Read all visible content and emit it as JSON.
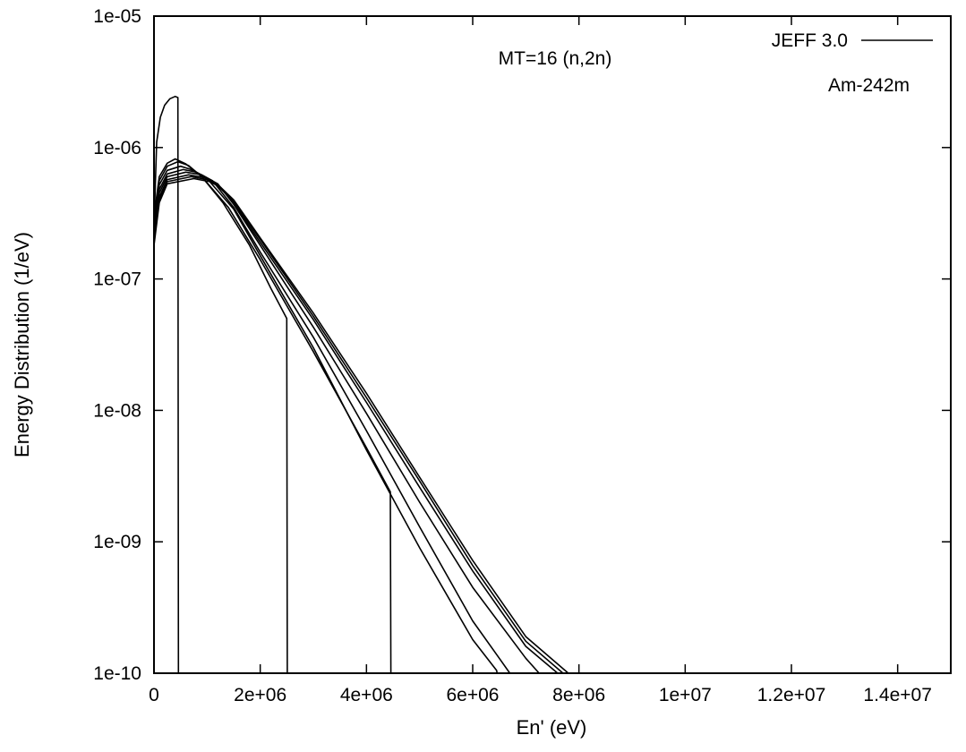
{
  "chart_data": {
    "type": "line",
    "title": "",
    "xlabel": "En' (eV)",
    "ylabel": "Energy Distribution (1/eV)",
    "xlim": [
      0,
      15000000
    ],
    "ylim": [
      1e-10,
      1e-05
    ],
    "yscale": "log",
    "grid": false,
    "legend": {
      "position": "top-right",
      "entries": [
        {
          "label": "JEFF 3.0",
          "color": "#000000"
        }
      ]
    },
    "annotations": [
      {
        "text": "MT=16 (n,2n)"
      },
      {
        "text": "Am-242m"
      }
    ],
    "x_ticks": [
      {
        "value": 0,
        "label": "0"
      },
      {
        "value": 2000000,
        "label": "2e+06"
      },
      {
        "value": 4000000,
        "label": "4e+06"
      },
      {
        "value": 6000000,
        "label": "6e+06"
      },
      {
        "value": 8000000,
        "label": "8e+06"
      },
      {
        "value": 10000000,
        "label": "1e+07"
      },
      {
        "value": 12000000,
        "label": "1.2e+07"
      },
      {
        "value": 14000000,
        "label": "1.4e+07"
      }
    ],
    "y_ticks": [
      {
        "value": 1e-10,
        "label": "1e-10"
      },
      {
        "value": 1e-09,
        "label": "1e-09"
      },
      {
        "value": 1e-08,
        "label": "1e-08"
      },
      {
        "value": 1e-07,
        "label": "1e-07"
      },
      {
        "value": 1e-06,
        "label": "1e-06"
      },
      {
        "value": 1e-05,
        "label": "1e-05"
      }
    ],
    "series": [
      {
        "points": [
          [
            0,
            2.5e-07
          ],
          [
            50000,
            1.1e-06
          ],
          [
            120000,
            1.7e-06
          ],
          [
            200000,
            2.1e-06
          ],
          [
            300000,
            2.35e-06
          ],
          [
            400000,
            2.45e-06
          ],
          [
            450000,
            2.4e-06
          ],
          [
            460000,
            1e-10
          ]
        ]
      },
      {
        "points": [
          [
            0,
            3e-07
          ],
          [
            100000,
            6e-07
          ],
          [
            250000,
            7.6e-07
          ],
          [
            400000,
            8.2e-07
          ],
          [
            600000,
            7.5e-07
          ],
          [
            900000,
            6e-07
          ],
          [
            1300000,
            3.8e-07
          ],
          [
            1800000,
            1.8e-07
          ],
          [
            2200000,
            8.5e-08
          ],
          [
            2500000,
            5e-08
          ],
          [
            2510000,
            1e-10
          ]
        ]
      },
      {
        "points": [
          [
            0,
            2.8e-07
          ],
          [
            100000,
            5.6e-07
          ],
          [
            250000,
            7.2e-07
          ],
          [
            450000,
            7.8e-07
          ],
          [
            650000,
            7.3e-07
          ],
          [
            900000,
            6e-07
          ],
          [
            1400000,
            3.5e-07
          ],
          [
            2000000,
            1.4e-07
          ],
          [
            3000000,
            2.8e-08
          ],
          [
            4000000,
            5.2e-09
          ],
          [
            4450000,
            2.4e-09
          ],
          [
            4460000,
            1e-10
          ]
        ]
      },
      {
        "points": [
          [
            0,
            2.6e-07
          ],
          [
            100000,
            5.2e-07
          ],
          [
            250000,
            6.7e-07
          ],
          [
            500000,
            7.2e-07
          ],
          [
            700000,
            6.8e-07
          ],
          [
            1000000,
            5.8e-07
          ],
          [
            1500000,
            3.4e-07
          ],
          [
            2000000,
            1.5e-07
          ],
          [
            3000000,
            3e-08
          ],
          [
            4000000,
            5e-09
          ],
          [
            5000000,
            9e-10
          ],
          [
            6000000,
            1.8e-10
          ],
          [
            6450000,
            1.05e-10
          ],
          [
            6460000,
            1e-10
          ]
        ]
      },
      {
        "points": [
          [
            0,
            2.4e-07
          ],
          [
            100000,
            4.8e-07
          ],
          [
            250000,
            6.3e-07
          ],
          [
            550000,
            6.8e-07
          ],
          [
            800000,
            6.5e-07
          ],
          [
            1100000,
            5.6e-07
          ],
          [
            1500000,
            3.5e-07
          ],
          [
            2000000,
            1.6e-07
          ],
          [
            3000000,
            3.6e-08
          ],
          [
            4000000,
            7e-09
          ],
          [
            5000000,
            1.3e-09
          ],
          [
            6000000,
            2.5e-10
          ],
          [
            6500000,
            1.3e-10
          ],
          [
            6700000,
            1e-10
          ]
        ]
      },
      {
        "points": [
          [
            0,
            2.2e-07
          ],
          [
            100000,
            4.5e-07
          ],
          [
            250000,
            6e-07
          ],
          [
            600000,
            6.5e-07
          ],
          [
            900000,
            6.2e-07
          ],
          [
            1200000,
            5.3e-07
          ],
          [
            1500000,
            3.7e-07
          ],
          [
            2000000,
            1.8e-07
          ],
          [
            3000000,
            4.3e-08
          ],
          [
            4000000,
            9.5e-09
          ],
          [
            5000000,
            2e-09
          ],
          [
            6000000,
            4.5e-10
          ],
          [
            7000000,
            1.3e-10
          ],
          [
            7250000,
            1e-10
          ]
        ]
      },
      {
        "points": [
          [
            0,
            2e-07
          ],
          [
            100000,
            4.2e-07
          ],
          [
            250000,
            5.7e-07
          ],
          [
            650000,
            6.2e-07
          ],
          [
            950000,
            5.9e-07
          ],
          [
            1200000,
            5.2e-07
          ],
          [
            1500000,
            3.8e-07
          ],
          [
            2000000,
            1.9e-07
          ],
          [
            3000000,
            4.9e-08
          ],
          [
            4000000,
            1.15e-08
          ],
          [
            5000000,
            2.6e-09
          ],
          [
            6000000,
            6e-10
          ],
          [
            7000000,
            1.6e-10
          ],
          [
            7600000,
            1e-10
          ]
        ]
      },
      {
        "points": [
          [
            0,
            1.9e-07
          ],
          [
            100000,
            4e-07
          ],
          [
            250000,
            5.5e-07
          ],
          [
            700000,
            6e-07
          ],
          [
            1000000,
            5.7e-07
          ],
          [
            1200000,
            5.1e-07
          ],
          [
            1500000,
            3.9e-07
          ],
          [
            2000000,
            2e-07
          ],
          [
            3000000,
            5.2e-08
          ],
          [
            4000000,
            1.25e-08
          ],
          [
            5000000,
            2.9e-09
          ],
          [
            6000000,
            6.6e-10
          ],
          [
            7000000,
            1.75e-10
          ],
          [
            7700000,
            1e-10
          ]
        ]
      },
      {
        "points": [
          [
            0,
            1.8e-07
          ],
          [
            100000,
            3.8e-07
          ],
          [
            250000,
            5.3e-07
          ],
          [
            750000,
            5.8e-07
          ],
          [
            1050000,
            5.5e-07
          ],
          [
            1250000,
            5e-07
          ],
          [
            1500000,
            4e-07
          ],
          [
            2000000,
            2.05e-07
          ],
          [
            3000000,
            5.5e-08
          ],
          [
            4000000,
            1.35e-08
          ],
          [
            5000000,
            3.1e-09
          ],
          [
            6000000,
            7.2e-10
          ],
          [
            7000000,
            1.9e-10
          ],
          [
            7800000,
            1e-10
          ]
        ]
      }
    ]
  }
}
